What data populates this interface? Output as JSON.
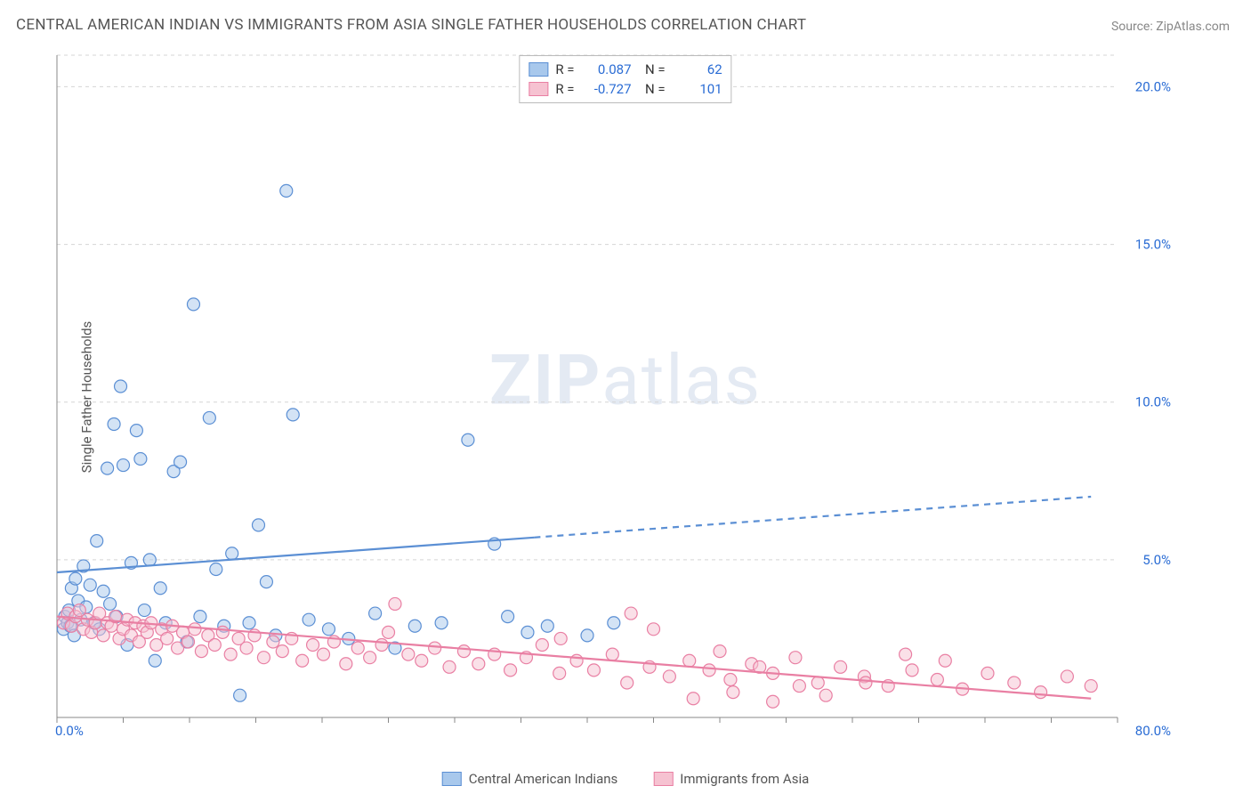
{
  "title": "CENTRAL AMERICAN INDIAN VS IMMIGRANTS FROM ASIA SINGLE FATHER HOUSEHOLDS CORRELATION CHART",
  "source": "Source: ZipAtlas.com",
  "y_axis_label": "Single Father Households",
  "watermark": {
    "bold": "ZIP",
    "rest": "atlas"
  },
  "chart": {
    "type": "scatter",
    "x_range": [
      0,
      80
    ],
    "y_range": [
      0,
      21
    ],
    "x_ticks": [
      0,
      80
    ],
    "x_tick_labels": [
      "0.0%",
      "80.0%"
    ],
    "y_ticks": [
      5,
      10,
      15,
      20
    ],
    "y_tick_labels": [
      "5.0%",
      "10.0%",
      "15.0%",
      "20.0%"
    ],
    "y_tick_color": "#2a6cd4",
    "grid_color": "#d5d5d5",
    "axis_color": "#888",
    "background_color": "#ffffff",
    "marker_radius": 7,
    "marker_opacity": 0.5,
    "trend_line_width": 2.2,
    "series": [
      {
        "name": "Central American Indians",
        "color_fill": "#a8c8ec",
        "color_stroke": "#5b8fd4",
        "legend_r": "0.087",
        "legend_n": "62",
        "trend": {
          "x1": 0,
          "y1": 4.6,
          "x2": 78,
          "y2": 7.0,
          "solid_until_x": 36
        },
        "points": [
          [
            0.5,
            2.8
          ],
          [
            0.6,
            3.2
          ],
          [
            0.8,
            3.0
          ],
          [
            0.9,
            3.4
          ],
          [
            1.0,
            2.9
          ],
          [
            1.1,
            4.1
          ],
          [
            1.3,
            2.6
          ],
          [
            1.4,
            4.4
          ],
          [
            1.6,
            3.7
          ],
          [
            1.8,
            3.1
          ],
          [
            2.0,
            4.8
          ],
          [
            2.2,
            3.5
          ],
          [
            2.5,
            4.2
          ],
          [
            2.8,
            3.0
          ],
          [
            3.0,
            5.6
          ],
          [
            3.2,
            2.8
          ],
          [
            3.5,
            4.0
          ],
          [
            3.8,
            7.9
          ],
          [
            4.0,
            3.6
          ],
          [
            4.3,
            9.3
          ],
          [
            4.5,
            3.2
          ],
          [
            4.8,
            10.5
          ],
          [
            5.0,
            8.0
          ],
          [
            5.3,
            2.3
          ],
          [
            5.6,
            4.9
          ],
          [
            6.0,
            9.1
          ],
          [
            6.3,
            8.2
          ],
          [
            6.6,
            3.4
          ],
          [
            7.0,
            5.0
          ],
          [
            7.4,
            1.8
          ],
          [
            7.8,
            4.1
          ],
          [
            8.2,
            3.0
          ],
          [
            8.8,
            7.8
          ],
          [
            9.3,
            8.1
          ],
          [
            9.8,
            2.4
          ],
          [
            10.3,
            13.1
          ],
          [
            10.8,
            3.2
          ],
          [
            11.5,
            9.5
          ],
          [
            12.0,
            4.7
          ],
          [
            12.6,
            2.9
          ],
          [
            13.2,
            5.2
          ],
          [
            13.8,
            0.7
          ],
          [
            14.5,
            3.0
          ],
          [
            15.2,
            6.1
          ],
          [
            15.8,
            4.3
          ],
          [
            16.5,
            2.6
          ],
          [
            17.3,
            16.7
          ],
          [
            17.8,
            9.6
          ],
          [
            19.0,
            3.1
          ],
          [
            20.5,
            2.8
          ],
          [
            22.0,
            2.5
          ],
          [
            24.0,
            3.3
          ],
          [
            25.5,
            2.2
          ],
          [
            27.0,
            2.9
          ],
          [
            29.0,
            3.0
          ],
          [
            31.0,
            8.8
          ],
          [
            33.0,
            5.5
          ],
          [
            34.0,
            3.2
          ],
          [
            35.5,
            2.7
          ],
          [
            37.0,
            2.9
          ],
          [
            40.0,
            2.6
          ],
          [
            42.0,
            3.0
          ]
        ]
      },
      {
        "name": "Immigrants from Asia",
        "color_fill": "#f6c2d1",
        "color_stroke": "#e97fa3",
        "legend_r": "-0.727",
        "legend_n": "101",
        "trend": {
          "x1": 0,
          "y1": 3.2,
          "x2": 78,
          "y2": 0.6,
          "solid_until_x": 78
        },
        "points": [
          [
            0.5,
            3.0
          ],
          [
            0.8,
            3.3
          ],
          [
            1.1,
            2.9
          ],
          [
            1.4,
            3.2
          ],
          [
            1.7,
            3.4
          ],
          [
            2.0,
            2.8
          ],
          [
            2.3,
            3.1
          ],
          [
            2.6,
            2.7
          ],
          [
            2.9,
            3.0
          ],
          [
            3.2,
            3.3
          ],
          [
            3.5,
            2.6
          ],
          [
            3.8,
            3.0
          ],
          [
            4.1,
            2.9
          ],
          [
            4.4,
            3.2
          ],
          [
            4.7,
            2.5
          ],
          [
            5.0,
            2.8
          ],
          [
            5.3,
            3.1
          ],
          [
            5.6,
            2.6
          ],
          [
            5.9,
            3.0
          ],
          [
            6.2,
            2.4
          ],
          [
            6.5,
            2.9
          ],
          [
            6.8,
            2.7
          ],
          [
            7.1,
            3.0
          ],
          [
            7.5,
            2.3
          ],
          [
            7.9,
            2.8
          ],
          [
            8.3,
            2.5
          ],
          [
            8.7,
            2.9
          ],
          [
            9.1,
            2.2
          ],
          [
            9.5,
            2.7
          ],
          [
            9.9,
            2.4
          ],
          [
            10.4,
            2.8
          ],
          [
            10.9,
            2.1
          ],
          [
            11.4,
            2.6
          ],
          [
            11.9,
            2.3
          ],
          [
            12.5,
            2.7
          ],
          [
            13.1,
            2.0
          ],
          [
            13.7,
            2.5
          ],
          [
            14.3,
            2.2
          ],
          [
            14.9,
            2.6
          ],
          [
            15.6,
            1.9
          ],
          [
            16.3,
            2.4
          ],
          [
            17.0,
            2.1
          ],
          [
            17.7,
            2.5
          ],
          [
            18.5,
            1.8
          ],
          [
            19.3,
            2.3
          ],
          [
            20.1,
            2.0
          ],
          [
            20.9,
            2.4
          ],
          [
            21.8,
            1.7
          ],
          [
            22.7,
            2.2
          ],
          [
            23.6,
            1.9
          ],
          [
            24.5,
            2.3
          ],
          [
            25.5,
            3.6
          ],
          [
            26.5,
            2.0
          ],
          [
            27.5,
            1.8
          ],
          [
            28.5,
            2.2
          ],
          [
            29.6,
            1.6
          ],
          [
            30.7,
            2.1
          ],
          [
            31.8,
            1.7
          ],
          [
            33.0,
            2.0
          ],
          [
            34.2,
            1.5
          ],
          [
            35.4,
            1.9
          ],
          [
            36.6,
            2.3
          ],
          [
            37.9,
            1.4
          ],
          [
            39.2,
            1.8
          ],
          [
            40.5,
            1.5
          ],
          [
            41.9,
            2.0
          ],
          [
            43.3,
            3.3
          ],
          [
            44.7,
            1.6
          ],
          [
            46.2,
            1.3
          ],
          [
            47.7,
            1.8
          ],
          [
            49.2,
            1.5
          ],
          [
            50.8,
            1.2
          ],
          [
            52.4,
            1.7
          ],
          [
            54.0,
            1.4
          ],
          [
            55.7,
            1.9
          ],
          [
            57.4,
            1.1
          ],
          [
            59.1,
            1.6
          ],
          [
            60.9,
            1.3
          ],
          [
            62.7,
            1.0
          ],
          [
            64.5,
            1.5
          ],
          [
            66.4,
            1.2
          ],
          [
            68.3,
            0.9
          ],
          [
            70.2,
            1.4
          ],
          [
            72.2,
            1.1
          ],
          [
            74.2,
            0.8
          ],
          [
            76.2,
            1.3
          ],
          [
            78.0,
            1.0
          ],
          [
            45.0,
            2.8
          ],
          [
            48.0,
            0.6
          ],
          [
            51.0,
            0.8
          ],
          [
            54.0,
            0.5
          ],
          [
            56.0,
            1.0
          ],
          [
            58.0,
            0.7
          ],
          [
            61.0,
            1.1
          ],
          [
            64.0,
            2.0
          ],
          [
            67.0,
            1.8
          ],
          [
            50.0,
            2.1
          ],
          [
            53.0,
            1.6
          ],
          [
            25.0,
            2.7
          ],
          [
            38.0,
            2.5
          ],
          [
            43.0,
            1.1
          ]
        ]
      }
    ]
  },
  "bottom_legend": [
    {
      "label": "Central American Indians",
      "fill": "#a8c8ec",
      "stroke": "#5b8fd4"
    },
    {
      "label": "Immigrants from Asia",
      "fill": "#f6c2d1",
      "stroke": "#e97fa3"
    }
  ]
}
